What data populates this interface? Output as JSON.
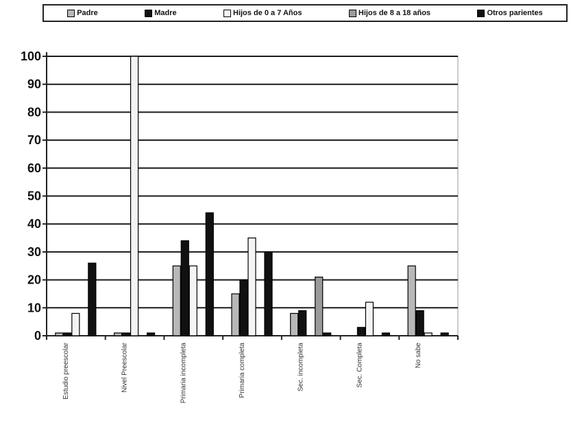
{
  "chart_data": {
    "type": "bar",
    "title": "",
    "xlabel": "",
    "ylabel": "",
    "ylim": [
      0,
      100
    ],
    "yticks": [
      0,
      10,
      20,
      30,
      40,
      50,
      60,
      70,
      80,
      90,
      100
    ],
    "grid": true,
    "legend_position": "top",
    "categories": [
      "Estudio preescolar",
      "Nivel Preescolar",
      "Primaria incompleta",
      "Primaria completa",
      "Sec. incompleta",
      "Sec. Completa",
      "No sabe"
    ],
    "series": [
      {
        "name": "Padre",
        "values": [
          1,
          1,
          25,
          15,
          8,
          0,
          25
        ],
        "color": "#b8b8b8"
      },
      {
        "name": "Madre",
        "values": [
          1,
          1,
          34,
          20,
          9,
          3,
          9
        ],
        "color": "#111111"
      },
      {
        "name": "Hijos de 0 a 7 Años",
        "values": [
          8,
          100,
          25,
          35,
          0,
          12,
          1
        ],
        "color": "#f4f4f4"
      },
      {
        "name": "Hijos de 8 a 18 años",
        "values": [
          0,
          0,
          0,
          0,
          21,
          0,
          0
        ],
        "color": "#9a9a9a"
      },
      {
        "name": "Otros parientes",
        "values": [
          26,
          1,
          44,
          30,
          1,
          1,
          1
        ],
        "color": "#111111"
      }
    ]
  }
}
